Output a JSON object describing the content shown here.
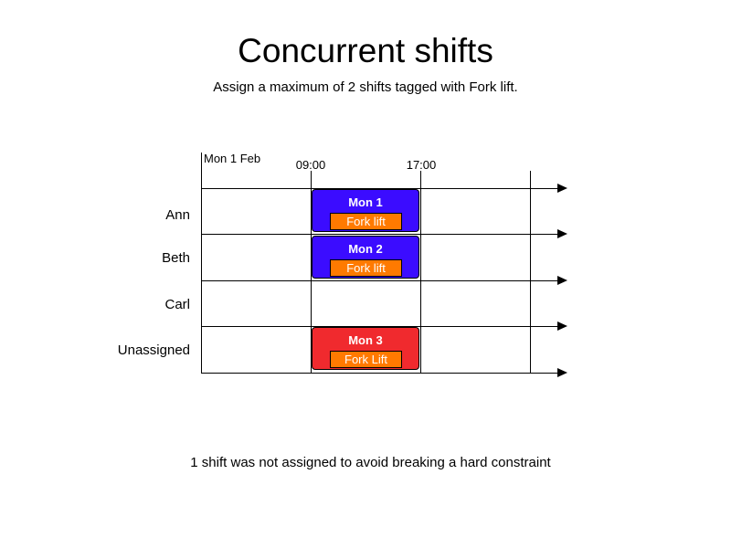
{
  "title": "Concurrent shifts",
  "subtitle": "Assign a maximum of 2 shifts tagged with Fork lift.",
  "timeline": {
    "date": "Mon 1 Feb",
    "times": [
      "09:00",
      "17:00"
    ]
  },
  "rows": [
    "Ann",
    "Beth",
    "Carl",
    "Unassigned"
  ],
  "shifts": [
    {
      "name": "Mon 1",
      "tag": "Fork lift",
      "row": "Ann",
      "start": "09:00",
      "end": "17:00",
      "color": "#3b0cff"
    },
    {
      "name": "Mon 2",
      "tag": "Fork lift",
      "row": "Beth",
      "start": "09:00",
      "end": "17:00",
      "color": "#3b0cff"
    },
    {
      "name": "Mon 3",
      "tag": "Fork Lift",
      "row": "Unassigned",
      "start": "09:00",
      "end": "17:00",
      "color": "#f02a2e"
    }
  ],
  "tag_color": "#ff7a00",
  "footer": "1 shift was not assigned to avoid breaking a hard constraint"
}
